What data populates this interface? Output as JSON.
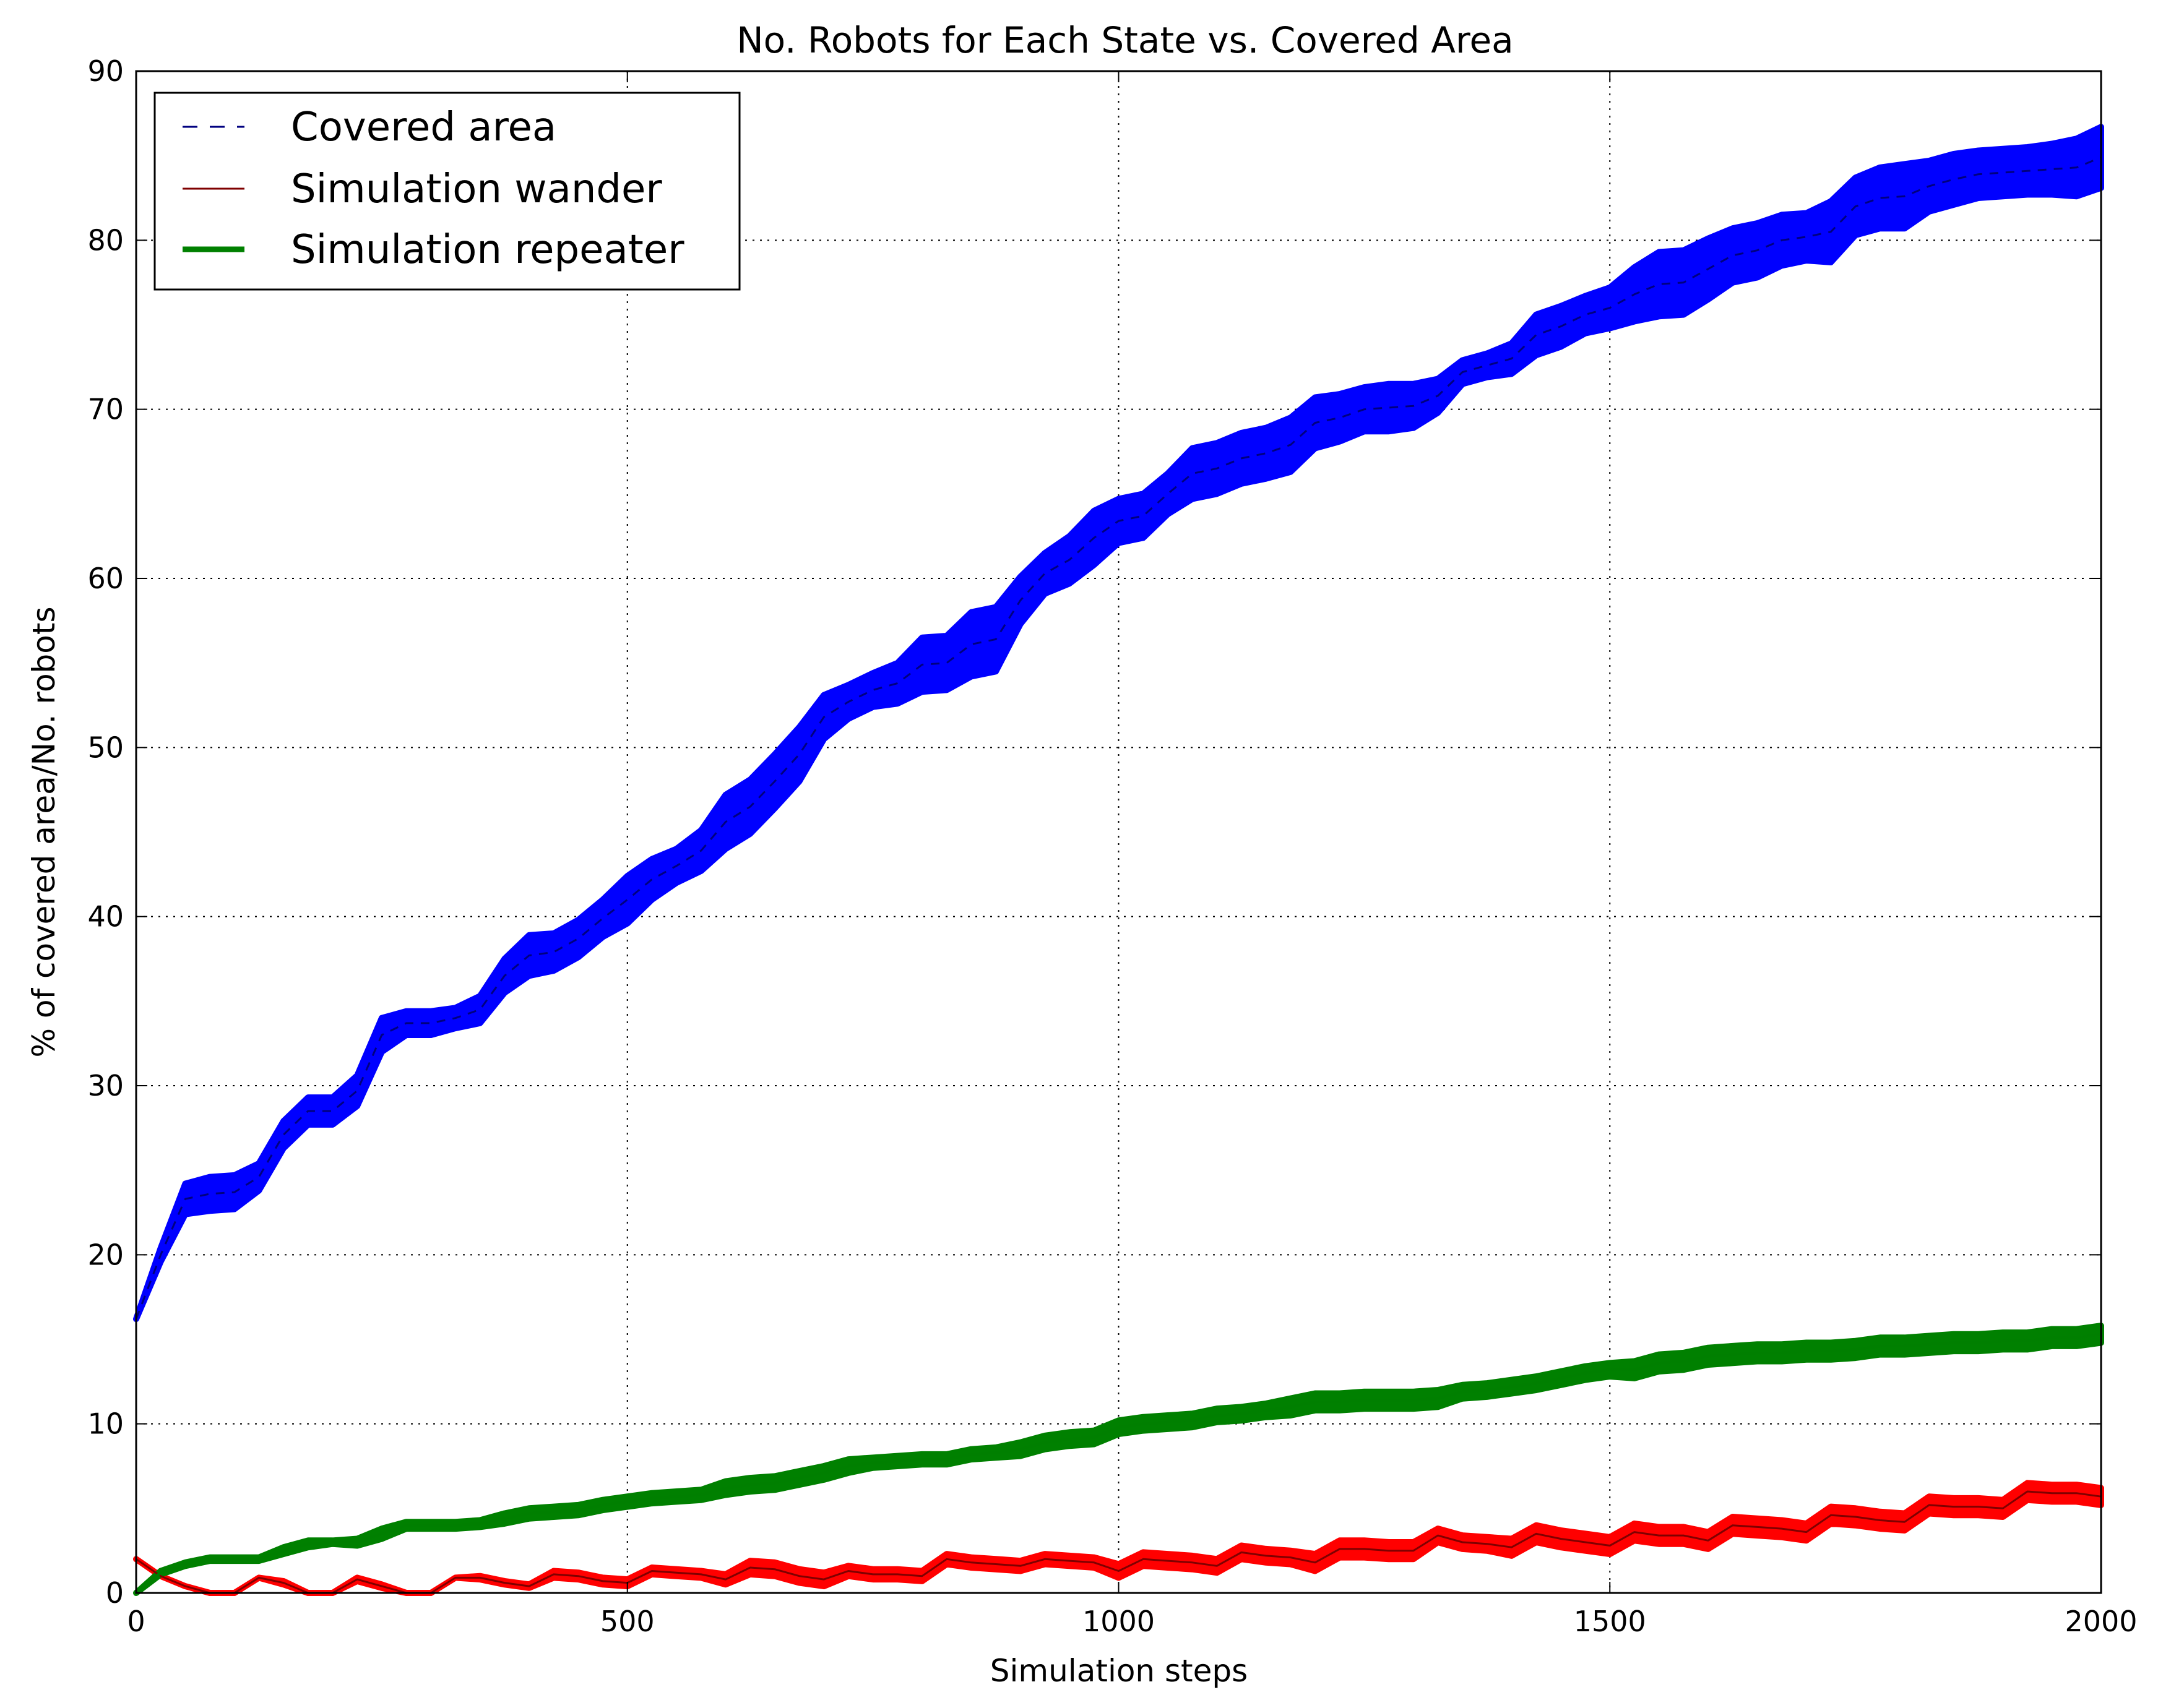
{
  "chart_data": {
    "type": "line",
    "title": "No. Robots for Each State vs. Covered Area",
    "xlabel": "Simulation steps",
    "ylabel": "% of covered area/No. robots",
    "xlim": [
      0,
      2000
    ],
    "ylim": [
      0,
      90
    ],
    "xticks": [
      0,
      500,
      1000,
      1500,
      2000
    ],
    "yticks": [
      0,
      10,
      20,
      30,
      40,
      50,
      60,
      70,
      80,
      90
    ],
    "grid": true,
    "legend_position": "top-left",
    "series": [
      {
        "name": "Covered area",
        "line_color": "#00007f",
        "band_color": "#0000ff",
        "line_style": "dashed",
        "x": [
          0,
          25,
          50,
          75,
          100,
          125,
          150,
          175,
          200,
          225,
          250,
          275,
          300,
          325,
          350,
          375,
          400,
          425,
          450,
          475,
          500,
          525,
          550,
          575,
          600,
          625,
          650,
          675,
          700,
          725,
          750,
          775,
          800,
          825,
          850,
          875,
          900,
          925,
          950,
          975,
          1000,
          1025,
          1050,
          1075,
          1100,
          1125,
          1150,
          1175,
          1200,
          1225,
          1250,
          1275,
          1300,
          1325,
          1350,
          1375,
          1400,
          1425,
          1450,
          1475,
          1500,
          1525,
          1550,
          1575,
          1600,
          1625,
          1650,
          1675,
          1700,
          1725,
          1750,
          1775,
          1800,
          1825,
          1850,
          1875,
          1900,
          1925,
          1950,
          1975,
          2000
        ],
        "values": [
          16.2,
          20.0,
          23.3,
          23.6,
          23.7,
          24.6,
          27.1,
          28.5,
          28.5,
          29.7,
          33.0,
          33.7,
          33.7,
          34.0,
          34.5,
          36.5,
          37.7,
          37.9,
          38.7,
          39.9,
          41.0,
          42.2,
          43.0,
          43.9,
          45.6,
          46.5,
          48.0,
          49.6,
          51.8,
          52.7,
          53.4,
          53.8,
          54.9,
          55.0,
          56.1,
          56.4,
          58.7,
          60.3,
          61.1,
          62.4,
          63.4,
          63.7,
          65.0,
          66.2,
          66.5,
          67.1,
          67.4,
          67.9,
          69.2,
          69.5,
          70.0,
          70.1,
          70.2,
          70.8,
          72.2,
          72.6,
          73.0,
          74.4,
          74.9,
          75.6,
          76.0,
          76.8,
          77.4,
          77.5,
          78.3,
          79.1,
          79.4,
          80.0,
          80.2,
          80.5,
          82.0,
          82.5,
          82.6,
          83.2,
          83.6,
          83.9,
          84.0,
          84.1,
          84.2,
          84.3,
          84.9
        ],
        "band": [
          0,
          0.4,
          0.9,
          1.0,
          1.0,
          0.8,
          0.8,
          0.8,
          0.8,
          0.9,
          1.0,
          0.7,
          0.7,
          0.6,
          0.8,
          1.0,
          1.2,
          1.1,
          1.1,
          1.1,
          1.4,
          1.2,
          1.0,
          1.2,
          1.6,
          1.6,
          1.6,
          1.6,
          1.3,
          1.0,
          1.0,
          1.2,
          1.6,
          1.6,
          1.9,
          1.9,
          1.4,
          1.2,
          1.4,
          1.6,
          1.3,
          1.3,
          1.2,
          1.5,
          1.5,
          1.5,
          1.5,
          1.6,
          1.5,
          1.4,
          1.3,
          1.4,
          1.3,
          1.0,
          0.7,
          0.7,
          0.9,
          1.2,
          1.2,
          1.1,
          1.2,
          1.6,
          1.9,
          1.9,
          1.8,
          1.6,
          1.6,
          1.5,
          1.4,
          1.8,
          1.7,
          1.8,
          1.9,
          1.5,
          1.5,
          1.4,
          1.4,
          1.4,
          1.5,
          1.7,
          1.8
        ]
      },
      {
        "name": "Simulation  wander",
        "line_color": "#7f0000",
        "band_color": "#ff0000",
        "line_style": "solid",
        "x": [
          0,
          25,
          50,
          75,
          100,
          125,
          150,
          175,
          200,
          225,
          250,
          275,
          300,
          325,
          350,
          375,
          400,
          425,
          450,
          475,
          500,
          525,
          550,
          575,
          600,
          625,
          650,
          675,
          700,
          725,
          750,
          775,
          800,
          825,
          850,
          875,
          900,
          925,
          950,
          975,
          1000,
          1025,
          1050,
          1075,
          1100,
          1125,
          1150,
          1175,
          1200,
          1225,
          1250,
          1275,
          1300,
          1325,
          1350,
          1375,
          1400,
          1425,
          1450,
          1475,
          1500,
          1525,
          1550,
          1575,
          1600,
          1625,
          1650,
          1675,
          1700,
          1725,
          1750,
          1775,
          1800,
          1825,
          1850,
          1875,
          1900,
          1925,
          1950,
          1975,
          2000
        ],
        "values": [
          2.0,
          1.0,
          0.4,
          0.0,
          0.0,
          0.9,
          0.6,
          0.0,
          0.0,
          0.8,
          0.4,
          0.0,
          0.0,
          0.9,
          0.9,
          0.6,
          0.4,
          1.1,
          1.0,
          0.7,
          0.6,
          1.3,
          1.2,
          1.1,
          0.8,
          1.5,
          1.4,
          1.0,
          0.8,
          1.3,
          1.1,
          1.1,
          1.0,
          2.0,
          1.8,
          1.7,
          1.6,
          2.0,
          1.9,
          1.8,
          1.3,
          2.0,
          1.9,
          1.8,
          1.6,
          2.4,
          2.2,
          2.1,
          1.8,
          2.6,
          2.6,
          2.5,
          2.5,
          3.4,
          3.0,
          2.9,
          2.7,
          3.5,
          3.2,
          3.0,
          2.8,
          3.6,
          3.4,
          3.4,
          3.1,
          4.0,
          3.9,
          3.8,
          3.6,
          4.6,
          4.5,
          4.3,
          4.2,
          5.2,
          5.1,
          5.1,
          5.0,
          6.0,
          5.9,
          5.9,
          5.7
        ],
        "band": [
          0,
          0,
          0,
          0,
          0,
          0,
          0.1,
          0,
          0,
          0.1,
          0.1,
          0,
          0,
          0,
          0.1,
          0.1,
          0.1,
          0.2,
          0.2,
          0.2,
          0.2,
          0.2,
          0.2,
          0.2,
          0.3,
          0.4,
          0.4,
          0.4,
          0.4,
          0.3,
          0.3,
          0.3,
          0.3,
          0.3,
          0.3,
          0.3,
          0.3,
          0.3,
          0.3,
          0.3,
          0.4,
          0.4,
          0.4,
          0.4,
          0.4,
          0.4,
          0.4,
          0.4,
          0.5,
          0.5,
          0.5,
          0.5,
          0.5,
          0.4,
          0.4,
          0.4,
          0.5,
          0.5,
          0.5,
          0.5,
          0.5,
          0.5,
          0.5,
          0.5,
          0.5,
          0.5,
          0.5,
          0.5,
          0.5,
          0.5,
          0.5,
          0.5,
          0.5,
          0.5,
          0.5,
          0.5,
          0.5,
          0.5,
          0.5,
          0.5,
          0.5
        ]
      },
      {
        "name": "Simulation  repeater",
        "line_color": "#007f00",
        "band_color": "#008000",
        "line_style": "solid",
        "x": [
          0,
          25,
          50,
          75,
          100,
          125,
          150,
          175,
          200,
          225,
          250,
          275,
          300,
          325,
          350,
          375,
          400,
          425,
          450,
          475,
          500,
          525,
          550,
          575,
          600,
          625,
          650,
          675,
          700,
          725,
          750,
          775,
          800,
          825,
          850,
          875,
          900,
          925,
          950,
          975,
          1000,
          1025,
          1050,
          1075,
          1100,
          1125,
          1150,
          1175,
          1200,
          1225,
          1250,
          1275,
          1300,
          1325,
          1350,
          1375,
          1400,
          1425,
          1450,
          1475,
          1500,
          1525,
          1550,
          1575,
          1600,
          1625,
          1650,
          1675,
          1700,
          1725,
          1750,
          1775,
          1800,
          1825,
          1850,
          1875,
          1900,
          1925,
          1950,
          1975,
          2000
        ],
        "values": [
          0.0,
          1.2,
          1.7,
          2.0,
          2.0,
          2.0,
          2.5,
          2.9,
          3.0,
          3.0,
          3.5,
          4.0,
          4.0,
          4.0,
          4.1,
          4.4,
          4.7,
          4.8,
          4.9,
          5.2,
          5.4,
          5.6,
          5.7,
          5.8,
          6.2,
          6.4,
          6.5,
          6.8,
          7.1,
          7.5,
          7.7,
          7.8,
          7.9,
          7.9,
          8.2,
          8.3,
          8.5,
          8.9,
          9.1,
          9.2,
          9.8,
          10.0,
          10.1,
          10.2,
          10.5,
          10.6,
          10.8,
          11.0,
          11.3,
          11.3,
          11.4,
          11.4,
          11.4,
          11.5,
          11.9,
          12.0,
          12.2,
          12.4,
          12.7,
          13.0,
          13.2,
          13.2,
          13.6,
          13.7,
          14.0,
          14.1,
          14.2,
          14.2,
          14.3,
          14.3,
          14.4,
          14.6,
          14.6,
          14.7,
          14.8,
          14.8,
          14.9,
          14.9,
          15.1,
          15.1,
          15.3
        ],
        "band": [
          0,
          0.1,
          0.1,
          0.1,
          0.1,
          0.1,
          0.2,
          0.2,
          0.1,
          0.2,
          0.3,
          0.2,
          0.2,
          0.2,
          0.2,
          0.3,
          0.3,
          0.3,
          0.3,
          0.3,
          0.3,
          0.3,
          0.3,
          0.3,
          0.4,
          0.4,
          0.4,
          0.4,
          0.4,
          0.4,
          0.3,
          0.3,
          0.3,
          0.3,
          0.3,
          0.3,
          0.4,
          0.4,
          0.4,
          0.4,
          0.4,
          0.4,
          0.4,
          0.4,
          0.4,
          0.4,
          0.4,
          0.5,
          0.5,
          0.5,
          0.5,
          0.5,
          0.5,
          0.5,
          0.4,
          0.4,
          0.4,
          0.4,
          0.4,
          0.4,
          0.4,
          0.5,
          0.5,
          0.5,
          0.5,
          0.5,
          0.5,
          0.5,
          0.5,
          0.5,
          0.5,
          0.5,
          0.5,
          0.5,
          0.5,
          0.5,
          0.5,
          0.5,
          0.5,
          0.5,
          0.5
        ]
      }
    ]
  }
}
